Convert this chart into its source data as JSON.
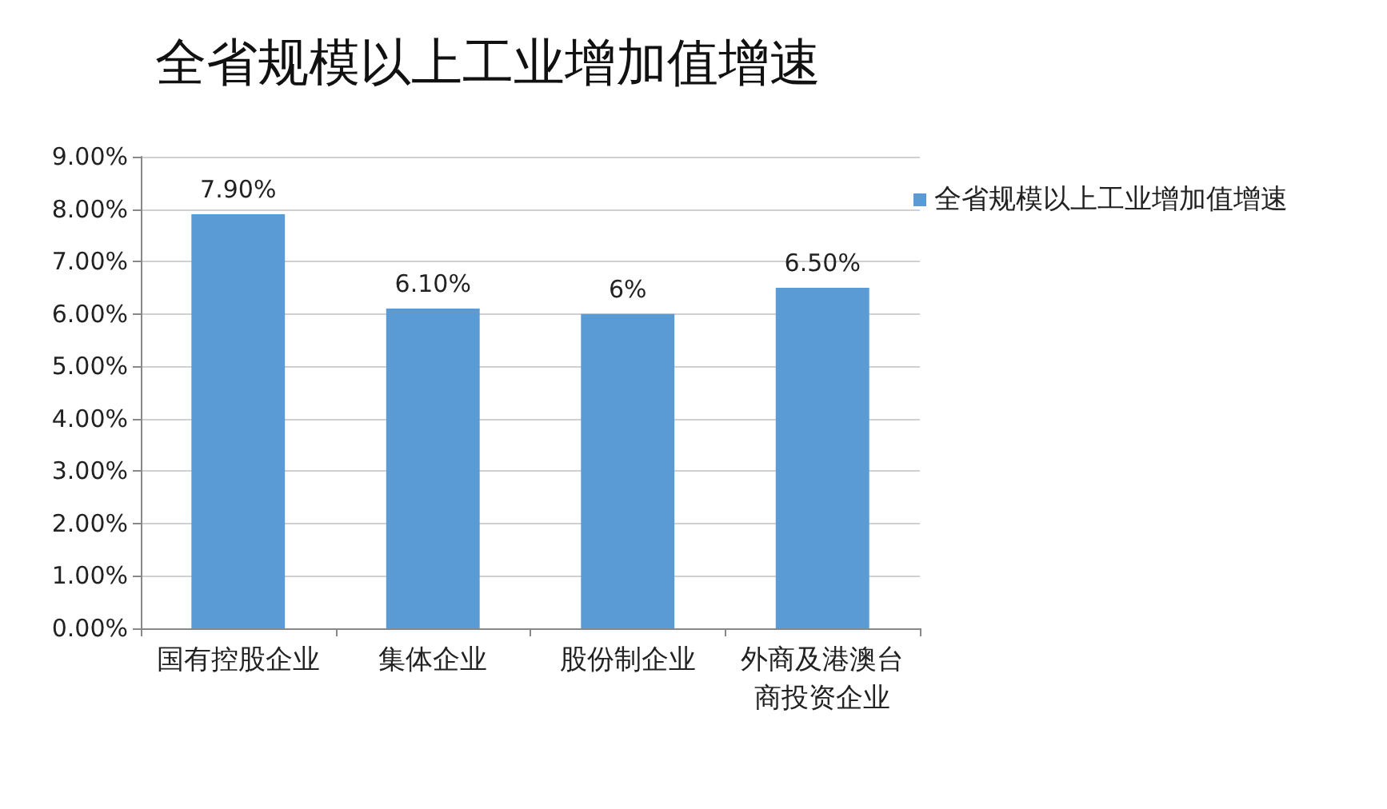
{
  "chart_data": {
    "type": "bar",
    "title": "全省规模以上工业增加值增速",
    "categories": [
      "国有控股企业",
      "集体企业",
      "股份制企业",
      "外商及港澳台商投资企业"
    ],
    "series": [
      {
        "name": "全省规模以上工业增加值增速",
        "color": "#5b9bd5",
        "values": [
          7.9,
          6.1,
          6,
          6.5
        ],
        "value_labels": [
          "7.90%",
          "6.10%",
          "6%",
          "6.50%"
        ]
      }
    ],
    "ylim": [
      0,
      9
    ],
    "yticks": [
      {
        "value": 0,
        "label": "0.00%"
      },
      {
        "value": 1,
        "label": "1.00%"
      },
      {
        "value": 2,
        "label": "2.00%"
      },
      {
        "value": 3,
        "label": "3.00%"
      },
      {
        "value": 4,
        "label": "4.00%"
      },
      {
        "value": 5,
        "label": "5.00%"
      },
      {
        "value": 6,
        "label": "6.00%"
      },
      {
        "value": 7,
        "label": "7.00%"
      },
      {
        "value": 8,
        "label": "8.00%"
      },
      {
        "value": 9,
        "label": "9.00%"
      }
    ],
    "grid": "y",
    "legend": "right"
  }
}
